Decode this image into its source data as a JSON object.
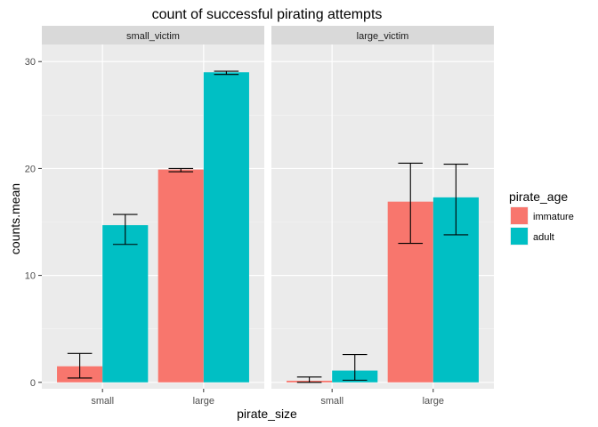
{
  "chart_data": {
    "type": "bar",
    "title": "count of successful pirating attempts",
    "xlabel": "pirate_size",
    "ylabel": "counts.mean",
    "ylim": [
      -0.6,
      31.6
    ],
    "yticks": [
      0,
      10,
      20,
      30
    ],
    "grid": true,
    "legend_position": "right",
    "legend_title": "pirate_age",
    "categories": [
      "small",
      "large"
    ],
    "facets": [
      {
        "label": "small_victim",
        "series": [
          {
            "name": "immature",
            "values": [
              1.5,
              19.9
            ],
            "err_low": [
              0.4,
              19.7
            ],
            "err_high": [
              2.7,
              20.0
            ]
          },
          {
            "name": "adult",
            "values": [
              14.7,
              29.0
            ],
            "err_low": [
              12.9,
              28.8
            ],
            "err_high": [
              15.7,
              29.1
            ]
          }
        ]
      },
      {
        "label": "large_victim",
        "series": [
          {
            "name": "immature",
            "values": [
              0.15,
              16.9
            ],
            "err_low": [
              0.0,
              13.0
            ],
            "err_high": [
              0.5,
              20.5
            ]
          },
          {
            "name": "adult",
            "values": [
              1.1,
              17.3
            ],
            "err_low": [
              0.2,
              13.8
            ],
            "err_high": [
              2.6,
              20.4
            ]
          }
        ]
      }
    ],
    "colors": {
      "immature": "#F8766D",
      "adult": "#00BFC4"
    }
  }
}
